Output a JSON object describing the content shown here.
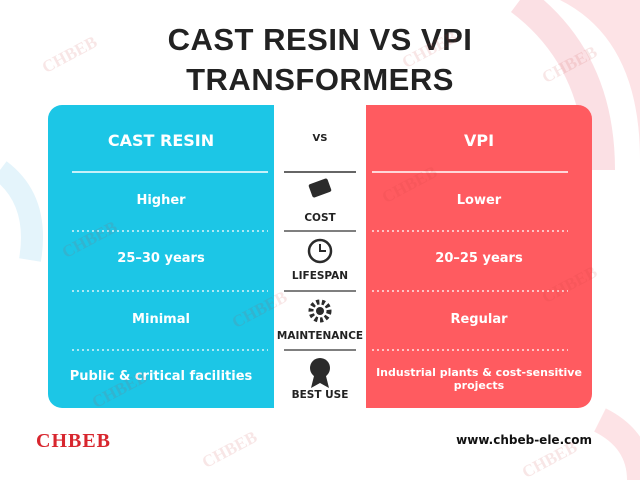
{
  "header": {
    "title_line1": "CAST RESIN VS VPI",
    "title_line2": "TRANSFORMERS"
  },
  "table": {
    "left_header": "CAST RESIN",
    "middle_header": "VS",
    "right_header": "VPI",
    "rows": [
      {
        "aspect": "COST",
        "left": "Higher",
        "right": "Lower"
      },
      {
        "aspect": "LIFESPAN",
        "left": "25–30 years",
        "right": "20–25 years"
      },
      {
        "aspect": "MAINTENANCE",
        "left": "Minimal",
        "right": "Regular"
      },
      {
        "aspect": "BEST USE",
        "left": "Public & critical facilities",
        "right": "Industrial plants & cost-sensitive projects"
      }
    ]
  },
  "watermark": "CHBEB",
  "footer": {
    "logo": "CHBEB",
    "url": "www.chbeb-ele.com"
  }
}
